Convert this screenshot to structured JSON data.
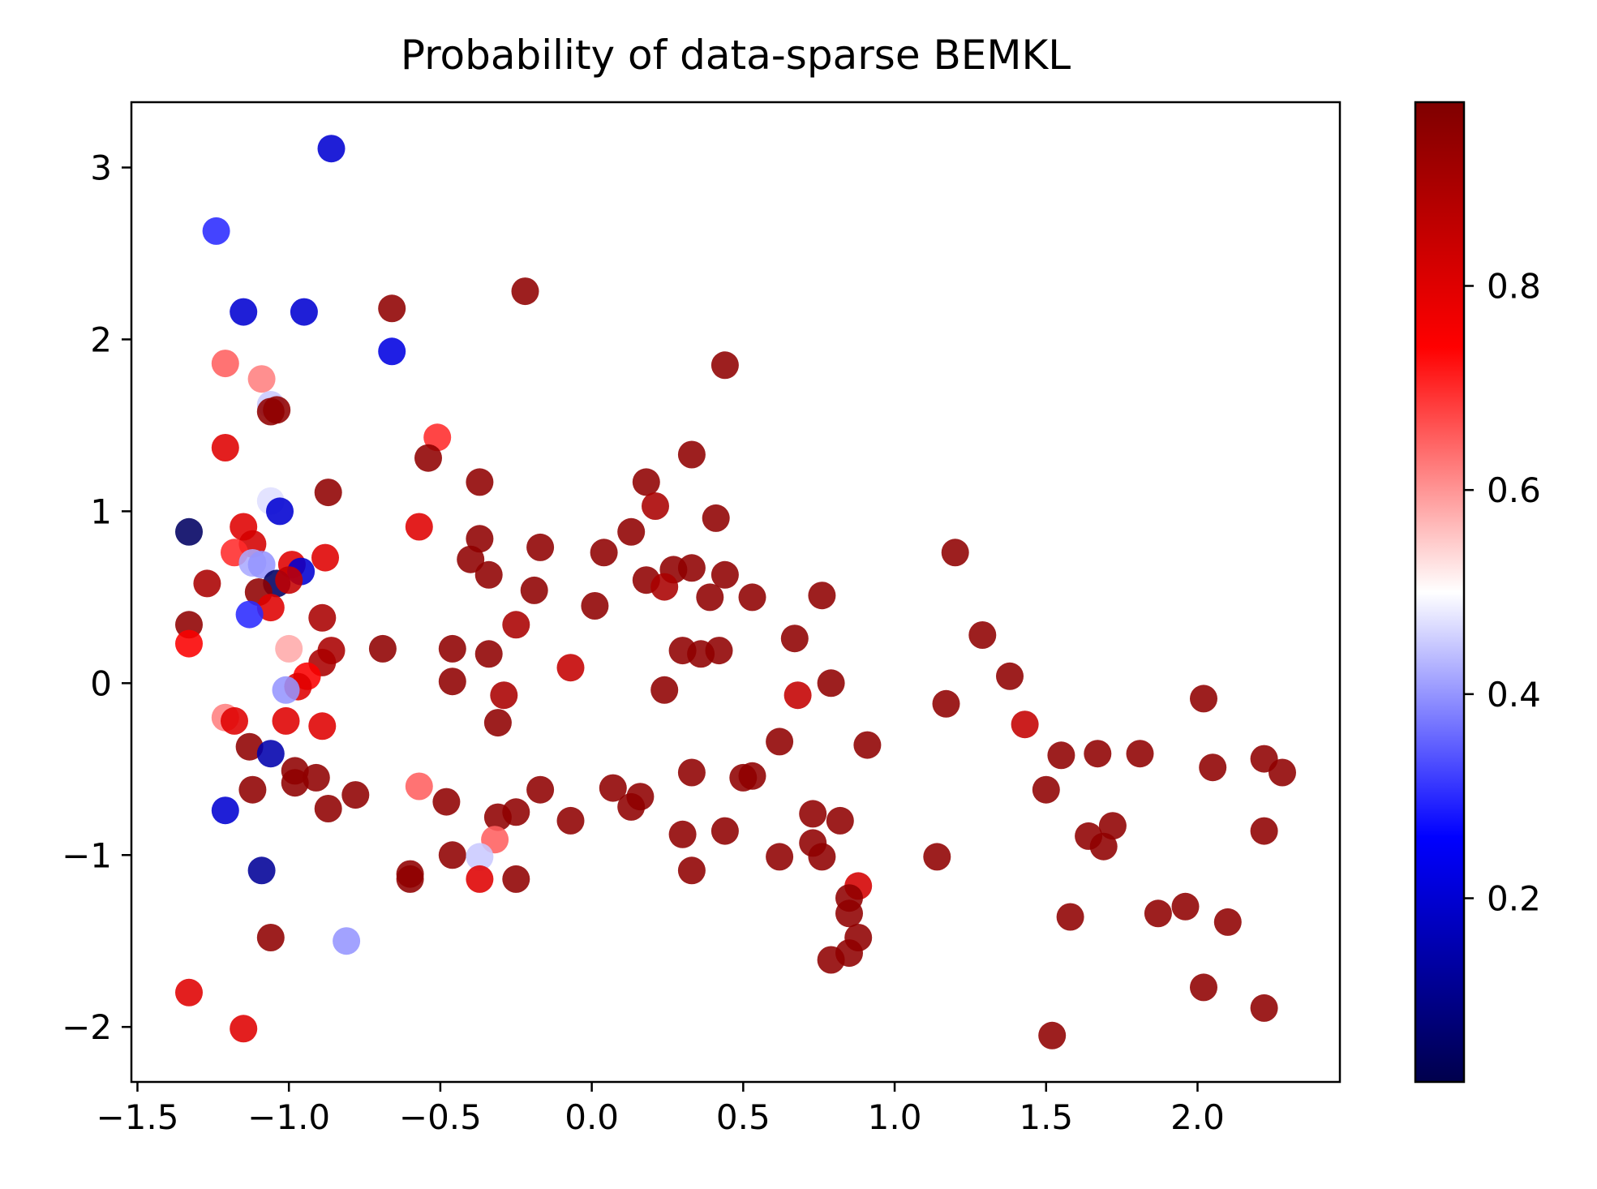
{
  "chart_data": {
    "type": "scatter",
    "title": "Probability of data-sparse BEMKL",
    "xlabel": "",
    "ylabel": "",
    "xlim": [
      -1.52,
      2.47
    ],
    "ylim": [
      -2.32,
      3.38
    ],
    "x_ticks": [
      -1.5,
      -1.0,
      -0.5,
      0.0,
      0.5,
      1.0,
      1.5,
      2.0
    ],
    "x_tick_labels": [
      "−1.5",
      "−1.0",
      "−0.5",
      "0.0",
      "0.5",
      "1.0",
      "1.5",
      "2.0"
    ],
    "y_ticks": [
      -2,
      -1,
      0,
      1,
      2,
      3
    ],
    "y_tick_labels": [
      "−2",
      "−1",
      "0",
      "1",
      "2",
      "3"
    ],
    "grid": false,
    "colorbar": {
      "colormap": "seismic",
      "range": [
        0.02,
        0.98
      ],
      "ticks": [
        0.2,
        0.4,
        0.6,
        0.8
      ],
      "tick_labels": [
        "0.2",
        "0.4",
        "0.6",
        "0.8"
      ],
      "stops": [
        "#00004c",
        "#0000ff",
        "#ffffff",
        "#ff0000",
        "#7f0000"
      ]
    },
    "marker_opacity": 0.88,
    "points": [
      {
        "x": -0.86,
        "y": 3.11,
        "p": 0.2
      },
      {
        "x": -1.24,
        "y": 2.63,
        "p": 0.3
      },
      {
        "x": -1.15,
        "y": 2.16,
        "p": 0.2
      },
      {
        "x": -0.95,
        "y": 2.16,
        "p": 0.2
      },
      {
        "x": -0.66,
        "y": 1.93,
        "p": 0.22
      },
      {
        "x": -1.21,
        "y": 1.86,
        "p": 0.65
      },
      {
        "x": -1.09,
        "y": 1.77,
        "p": 0.62
      },
      {
        "x": -1.06,
        "y": 1.62,
        "p": 0.45
      },
      {
        "x": -1.04,
        "y": 1.59,
        "p": 0.95
      },
      {
        "x": -1.06,
        "y": 1.58,
        "p": 0.95
      },
      {
        "x": -1.21,
        "y": 1.37,
        "p": 0.8
      },
      {
        "x": -1.06,
        "y": 1.06,
        "p": 0.47
      },
      {
        "x": -1.03,
        "y": 1.0,
        "p": 0.2
      },
      {
        "x": -1.33,
        "y": 0.88,
        "p": 0.05
      },
      {
        "x": -1.15,
        "y": 0.91,
        "p": 0.8
      },
      {
        "x": -1.12,
        "y": 0.81,
        "p": 0.82
      },
      {
        "x": -1.18,
        "y": 0.76,
        "p": 0.7
      },
      {
        "x": -1.12,
        "y": 0.7,
        "p": 0.42
      },
      {
        "x": -1.09,
        "y": 0.69,
        "p": 0.4
      },
      {
        "x": -0.99,
        "y": 0.69,
        "p": 0.8
      },
      {
        "x": -0.96,
        "y": 0.65,
        "p": 0.2
      },
      {
        "x": -1.04,
        "y": 0.58,
        "p": 0.05
      },
      {
        "x": -1.0,
        "y": 0.6,
        "p": 0.85
      },
      {
        "x": -1.27,
        "y": 0.58,
        "p": 0.9
      },
      {
        "x": -1.1,
        "y": 0.53,
        "p": 0.95
      },
      {
        "x": -1.06,
        "y": 0.44,
        "p": 0.8
      },
      {
        "x": -1.13,
        "y": 0.4,
        "p": 0.3
      },
      {
        "x": -1.33,
        "y": 0.34,
        "p": 0.95
      },
      {
        "x": -1.33,
        "y": 0.23,
        "p": 0.75
      },
      {
        "x": -0.88,
        "y": 0.73,
        "p": 0.8
      },
      {
        "x": -0.89,
        "y": 0.38,
        "p": 0.9
      },
      {
        "x": -0.86,
        "y": 0.19,
        "p": 0.9
      },
      {
        "x": -0.89,
        "y": 0.12,
        "p": 0.9
      },
      {
        "x": -1.0,
        "y": 0.2,
        "p": 0.58
      },
      {
        "x": -0.94,
        "y": 0.04,
        "p": 0.75
      },
      {
        "x": -0.97,
        "y": -0.02,
        "p": 0.8
      },
      {
        "x": -1.01,
        "y": -0.04,
        "p": 0.4
      },
      {
        "x": -1.21,
        "y": -0.2,
        "p": 0.62
      },
      {
        "x": -1.18,
        "y": -0.22,
        "p": 0.8
      },
      {
        "x": -1.01,
        "y": -0.22,
        "p": 0.8
      },
      {
        "x": -0.89,
        "y": -0.25,
        "p": 0.8
      },
      {
        "x": -1.13,
        "y": -0.37,
        "p": 0.95
      },
      {
        "x": -1.06,
        "y": -0.41,
        "p": 0.15
      },
      {
        "x": -0.98,
        "y": -0.51,
        "p": 0.95
      },
      {
        "x": -0.91,
        "y": -0.55,
        "p": 0.95
      },
      {
        "x": -0.98,
        "y": -0.58,
        "p": 0.95
      },
      {
        "x": -1.12,
        "y": -0.62,
        "p": 0.95
      },
      {
        "x": -0.78,
        "y": -0.65,
        "p": 0.95
      },
      {
        "x": -0.87,
        "y": -0.73,
        "p": 0.95
      },
      {
        "x": -1.21,
        "y": -0.74,
        "p": 0.2
      },
      {
        "x": -1.09,
        "y": -1.09,
        "p": 0.12
      },
      {
        "x": -1.06,
        "y": -1.48,
        "p": 0.95
      },
      {
        "x": -0.81,
        "y": -1.5,
        "p": 0.4
      },
      {
        "x": -1.33,
        "y": -1.8,
        "p": 0.8
      },
      {
        "x": -1.15,
        "y": -2.01,
        "p": 0.8
      },
      {
        "x": -0.66,
        "y": 2.18,
        "p": 0.95
      },
      {
        "x": -0.22,
        "y": 2.28,
        "p": 0.95
      },
      {
        "x": -0.87,
        "y": 1.11,
        "p": 0.95
      },
      {
        "x": -0.51,
        "y": 1.43,
        "p": 0.7
      },
      {
        "x": -0.54,
        "y": 1.31,
        "p": 0.95
      },
      {
        "x": -0.37,
        "y": 1.17,
        "p": 0.95
      },
      {
        "x": -0.57,
        "y": 0.91,
        "p": 0.8
      },
      {
        "x": -0.37,
        "y": 0.84,
        "p": 0.95
      },
      {
        "x": -0.4,
        "y": 0.72,
        "p": 0.95
      },
      {
        "x": -0.34,
        "y": 0.63,
        "p": 0.95
      },
      {
        "x": -0.17,
        "y": 0.79,
        "p": 0.95
      },
      {
        "x": -0.19,
        "y": 0.54,
        "p": 0.95
      },
      {
        "x": -0.25,
        "y": 0.34,
        "p": 0.9
      },
      {
        "x": -0.69,
        "y": 0.2,
        "p": 0.95
      },
      {
        "x": -0.46,
        "y": 0.2,
        "p": 0.95
      },
      {
        "x": -0.34,
        "y": 0.17,
        "p": 0.95
      },
      {
        "x": -0.46,
        "y": 0.01,
        "p": 0.95
      },
      {
        "x": -0.29,
        "y": -0.07,
        "p": 0.9
      },
      {
        "x": -0.31,
        "y": -0.23,
        "p": 0.95
      },
      {
        "x": -0.07,
        "y": 0.09,
        "p": 0.85
      },
      {
        "x": -0.57,
        "y": -0.6,
        "p": 0.65
      },
      {
        "x": -0.48,
        "y": -0.69,
        "p": 0.95
      },
      {
        "x": -0.17,
        "y": -0.62,
        "p": 0.95
      },
      {
        "x": -0.31,
        "y": -0.78,
        "p": 0.95
      },
      {
        "x": -0.25,
        "y": -0.75,
        "p": 0.95
      },
      {
        "x": -0.07,
        "y": -0.8,
        "p": 0.95
      },
      {
        "x": -0.32,
        "y": -0.91,
        "p": 0.65
      },
      {
        "x": -0.46,
        "y": -1.0,
        "p": 0.95
      },
      {
        "x": -0.37,
        "y": -1.01,
        "p": 0.45
      },
      {
        "x": -0.6,
        "y": -1.11,
        "p": 0.95
      },
      {
        "x": -0.6,
        "y": -1.14,
        "p": 0.95
      },
      {
        "x": -0.37,
        "y": -1.14,
        "p": 0.8
      },
      {
        "x": -0.25,
        "y": -1.14,
        "p": 0.95
      },
      {
        "x": 0.44,
        "y": 1.85,
        "p": 0.95
      },
      {
        "x": 0.33,
        "y": 1.33,
        "p": 0.95
      },
      {
        "x": 0.18,
        "y": 1.17,
        "p": 0.95
      },
      {
        "x": 0.21,
        "y": 1.03,
        "p": 0.9
      },
      {
        "x": 0.41,
        "y": 0.96,
        "p": 0.95
      },
      {
        "x": 0.13,
        "y": 0.88,
        "p": 0.95
      },
      {
        "x": 0.04,
        "y": 0.76,
        "p": 0.95
      },
      {
        "x": 0.27,
        "y": 0.66,
        "p": 0.95
      },
      {
        "x": 0.33,
        "y": 0.67,
        "p": 0.95
      },
      {
        "x": 0.44,
        "y": 0.63,
        "p": 0.95
      },
      {
        "x": 0.18,
        "y": 0.6,
        "p": 0.95
      },
      {
        "x": 0.24,
        "y": 0.56,
        "p": 0.9
      },
      {
        "x": 0.39,
        "y": 0.5,
        "p": 0.95
      },
      {
        "x": 0.53,
        "y": 0.5,
        "p": 0.95
      },
      {
        "x": 0.01,
        "y": 0.45,
        "p": 0.95
      },
      {
        "x": 0.3,
        "y": 0.19,
        "p": 0.95
      },
      {
        "x": 0.36,
        "y": 0.17,
        "p": 0.95
      },
      {
        "x": 0.42,
        "y": 0.19,
        "p": 0.95
      },
      {
        "x": 0.24,
        "y": -0.04,
        "p": 0.95
      },
      {
        "x": 0.07,
        "y": -0.61,
        "p": 0.95
      },
      {
        "x": 0.16,
        "y": -0.66,
        "p": 0.95
      },
      {
        "x": 0.13,
        "y": -0.72,
        "p": 0.95
      },
      {
        "x": 0.33,
        "y": -0.52,
        "p": 0.95
      },
      {
        "x": 0.3,
        "y": -0.88,
        "p": 0.95
      },
      {
        "x": 0.44,
        "y": -0.86,
        "p": 0.95
      },
      {
        "x": 0.33,
        "y": -1.09,
        "p": 0.95
      },
      {
        "x": 0.5,
        "y": -0.55,
        "p": 0.95
      },
      {
        "x": 0.53,
        "y": -0.54,
        "p": 0.95
      },
      {
        "x": 0.67,
        "y": 0.26,
        "p": 0.95
      },
      {
        "x": 0.76,
        "y": 0.51,
        "p": 0.95
      },
      {
        "x": 0.79,
        "y": 0.0,
        "p": 0.95
      },
      {
        "x": 0.68,
        "y": -0.07,
        "p": 0.85
      },
      {
        "x": 0.62,
        "y": -0.34,
        "p": 0.95
      },
      {
        "x": 0.91,
        "y": -0.36,
        "p": 0.95
      },
      {
        "x": 0.73,
        "y": -0.76,
        "p": 0.95
      },
      {
        "x": 0.82,
        "y": -0.8,
        "p": 0.95
      },
      {
        "x": 0.73,
        "y": -0.93,
        "p": 0.95
      },
      {
        "x": 0.76,
        "y": -1.01,
        "p": 0.95
      },
      {
        "x": 0.62,
        "y": -1.01,
        "p": 0.95
      },
      {
        "x": 0.88,
        "y": -1.18,
        "p": 0.82
      },
      {
        "x": 0.85,
        "y": -1.25,
        "p": 0.95
      },
      {
        "x": 0.85,
        "y": -1.34,
        "p": 0.95
      },
      {
        "x": 0.88,
        "y": -1.48,
        "p": 0.95
      },
      {
        "x": 0.85,
        "y": -1.57,
        "p": 0.95
      },
      {
        "x": 0.79,
        "y": -1.61,
        "p": 0.95
      },
      {
        "x": 1.2,
        "y": 0.76,
        "p": 0.95
      },
      {
        "x": 1.29,
        "y": 0.28,
        "p": 0.95
      },
      {
        "x": 1.38,
        "y": 0.04,
        "p": 0.95
      },
      {
        "x": 1.17,
        "y": -0.12,
        "p": 0.95
      },
      {
        "x": 1.14,
        "y": -1.01,
        "p": 0.95
      },
      {
        "x": 1.43,
        "y": -0.24,
        "p": 0.85
      },
      {
        "x": 1.55,
        "y": -0.42,
        "p": 0.95
      },
      {
        "x": 1.67,
        "y": -0.41,
        "p": 0.95
      },
      {
        "x": 1.81,
        "y": -0.41,
        "p": 0.95
      },
      {
        "x": 1.5,
        "y": -0.62,
        "p": 0.95
      },
      {
        "x": 1.72,
        "y": -0.83,
        "p": 0.95
      },
      {
        "x": 1.64,
        "y": -0.89,
        "p": 0.95
      },
      {
        "x": 1.69,
        "y": -0.95,
        "p": 0.95
      },
      {
        "x": 1.58,
        "y": -1.36,
        "p": 0.95
      },
      {
        "x": 1.87,
        "y": -1.34,
        "p": 0.95
      },
      {
        "x": 1.96,
        "y": -1.3,
        "p": 0.95
      },
      {
        "x": 2.1,
        "y": -1.39,
        "p": 0.95
      },
      {
        "x": 2.02,
        "y": -1.77,
        "p": 0.95
      },
      {
        "x": 1.52,
        "y": -2.05,
        "p": 0.95
      },
      {
        "x": 2.22,
        "y": -1.89,
        "p": 0.95
      },
      {
        "x": 2.02,
        "y": -0.09,
        "p": 0.95
      },
      {
        "x": 2.22,
        "y": -0.44,
        "p": 0.95
      },
      {
        "x": 2.05,
        "y": -0.49,
        "p": 0.95
      },
      {
        "x": 2.28,
        "y": -0.52,
        "p": 0.95
      },
      {
        "x": 2.22,
        "y": -0.86,
        "p": 0.95
      }
    ]
  }
}
